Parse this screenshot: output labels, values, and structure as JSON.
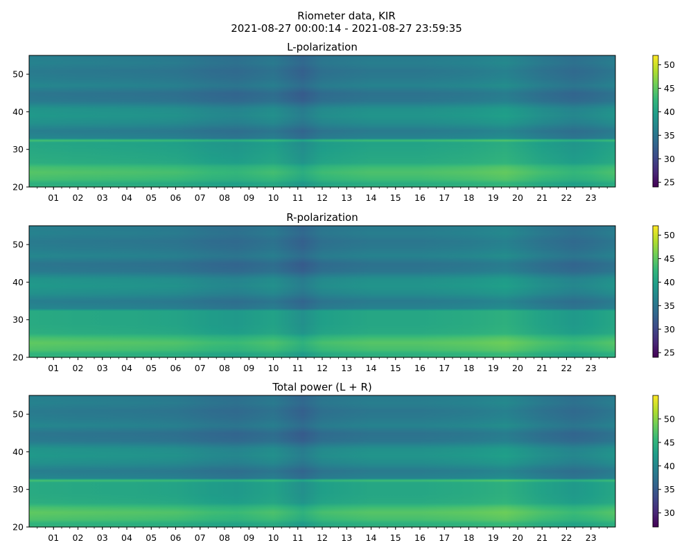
{
  "figure": {
    "title_line1": "Riometer data, KIR",
    "title_line2": "2021-08-27 00:00:14 - 2021-08-27 23:59:35"
  },
  "colormap": {
    "name": "viridis",
    "stops": [
      "#440154",
      "#482878",
      "#3e4989",
      "#31688e",
      "#26828e",
      "#1f9e89",
      "#35b779",
      "#6ece58",
      "#b5de2b",
      "#fde725"
    ]
  },
  "chart_data": [
    {
      "type": "heatmap",
      "title": "L-polarization",
      "x_tick_labels": [
        "01",
        "02",
        "03",
        "04",
        "05",
        "06",
        "07",
        "08",
        "09",
        "10",
        "11",
        "12",
        "13",
        "14",
        "15",
        "16",
        "17",
        "18",
        "19",
        "20",
        "21",
        "22",
        "23"
      ],
      "xlim_hours": [
        0,
        24
      ],
      "ylim": [
        20,
        55
      ],
      "y_ticks": [
        20,
        30,
        40,
        50
      ],
      "colorbar": {
        "vmin": 24,
        "vmax": 52,
        "ticks": [
          25,
          30,
          35,
          40,
          45,
          50
        ]
      },
      "freq_profile": [
        {
          "y": 20,
          "v": 42
        },
        {
          "y": 21,
          "v": 41
        },
        {
          "y": 22,
          "v": 43
        },
        {
          "y": 24,
          "v": 44
        },
        {
          "y": 25.5,
          "v": 43
        },
        {
          "y": 26.5,
          "v": 41
        },
        {
          "y": 29,
          "v": 40.5
        },
        {
          "y": 32,
          "v": 40
        },
        {
          "y": 32.5,
          "v": 44
        },
        {
          "y": 33,
          "v": 36.5
        },
        {
          "y": 35,
          "v": 35.5
        },
        {
          "y": 37,
          "v": 37.5
        },
        {
          "y": 39,
          "v": 38.5
        },
        {
          "y": 41,
          "v": 38
        },
        {
          "y": 43,
          "v": 35
        },
        {
          "y": 45,
          "v": 34.5
        },
        {
          "y": 47,
          "v": 36.5
        },
        {
          "y": 49,
          "v": 35.5
        },
        {
          "y": 51,
          "v": 35
        },
        {
          "y": 53,
          "v": 36
        },
        {
          "y": 55,
          "v": 35.5
        }
      ],
      "time_modulation": [
        {
          "h": 0,
          "d": 0.5
        },
        {
          "h": 2,
          "d": 0.2
        },
        {
          "h": 4,
          "d": 0
        },
        {
          "h": 6,
          "d": -0.3
        },
        {
          "h": 7.5,
          "d": -1.2
        },
        {
          "h": 8.5,
          "d": -1.5
        },
        {
          "h": 10,
          "d": -0.5
        },
        {
          "h": 11.2,
          "d": -2.5
        },
        {
          "h": 12,
          "d": -0.8
        },
        {
          "h": 14,
          "d": 0
        },
        {
          "h": 16,
          "d": 0
        },
        {
          "h": 18,
          "d": 0.5
        },
        {
          "h": 19.5,
          "d": 1.2
        },
        {
          "h": 21,
          "d": -0.5
        },
        {
          "h": 22.3,
          "d": -1.5
        },
        {
          "h": 23,
          "d": -1
        },
        {
          "h": 24,
          "d": 0
        }
      ]
    },
    {
      "type": "heatmap",
      "title": "R-polarization",
      "x_tick_labels": [
        "01",
        "02",
        "03",
        "04",
        "05",
        "06",
        "07",
        "08",
        "09",
        "10",
        "11",
        "12",
        "13",
        "14",
        "15",
        "16",
        "17",
        "18",
        "19",
        "20",
        "21",
        "22",
        "23"
      ],
      "xlim_hours": [
        0,
        24
      ],
      "ylim": [
        20,
        55
      ],
      "y_ticks": [
        20,
        30,
        40,
        50
      ],
      "colorbar": {
        "vmin": 24,
        "vmax": 52,
        "ticks": [
          25,
          30,
          35,
          40,
          45,
          50
        ]
      },
      "freq_profile": [
        {
          "y": 20,
          "v": 42
        },
        {
          "y": 21,
          "v": 41.5
        },
        {
          "y": 22,
          "v": 43.5
        },
        {
          "y": 24,
          "v": 44.5
        },
        {
          "y": 25.5,
          "v": 43
        },
        {
          "y": 26.5,
          "v": 41
        },
        {
          "y": 29,
          "v": 40.5
        },
        {
          "y": 32.5,
          "v": 40.5
        },
        {
          "y": 33,
          "v": 36.5
        },
        {
          "y": 35,
          "v": 35.5
        },
        {
          "y": 37,
          "v": 37.5
        },
        {
          "y": 39,
          "v": 38.5
        },
        {
          "y": 41,
          "v": 38
        },
        {
          "y": 43,
          "v": 35
        },
        {
          "y": 45,
          "v": 34.5
        },
        {
          "y": 47,
          "v": 36.5
        },
        {
          "y": 49,
          "v": 35.5
        },
        {
          "y": 51,
          "v": 35
        },
        {
          "y": 53,
          "v": 36
        },
        {
          "y": 55,
          "v": 35.5
        }
      ],
      "time_modulation": [
        {
          "h": 0,
          "d": 0.5
        },
        {
          "h": 2,
          "d": 0.2
        },
        {
          "h": 4,
          "d": 0
        },
        {
          "h": 6,
          "d": -0.3
        },
        {
          "h": 7.5,
          "d": -1.2
        },
        {
          "h": 8.5,
          "d": -1.5
        },
        {
          "h": 10,
          "d": -0.5
        },
        {
          "h": 11.2,
          "d": -2.5
        },
        {
          "h": 12,
          "d": -0.8
        },
        {
          "h": 14,
          "d": 0
        },
        {
          "h": 16,
          "d": 0
        },
        {
          "h": 18,
          "d": 0.5
        },
        {
          "h": 19.5,
          "d": 1.2
        },
        {
          "h": 21,
          "d": -0.5
        },
        {
          "h": 22.3,
          "d": -1.5
        },
        {
          "h": 23,
          "d": -1
        },
        {
          "h": 24,
          "d": 0
        }
      ]
    },
    {
      "type": "heatmap",
      "title": "Total power (L + R)",
      "x_tick_labels": [
        "01",
        "02",
        "03",
        "04",
        "05",
        "06",
        "07",
        "08",
        "09",
        "10",
        "11",
        "12",
        "13",
        "14",
        "15",
        "16",
        "17",
        "18",
        "19",
        "20",
        "21",
        "22",
        "23"
      ],
      "xlim_hours": [
        0,
        24
      ],
      "ylim": [
        20,
        55
      ],
      "y_ticks": [
        20,
        30,
        40,
        50
      ],
      "colorbar": {
        "vmin": 27,
        "vmax": 55,
        "ticks": [
          30,
          35,
          40,
          45,
          50
        ]
      },
      "freq_profile": [
        {
          "y": 20,
          "v": 45
        },
        {
          "y": 21,
          "v": 44.5
        },
        {
          "y": 22,
          "v": 46.5
        },
        {
          "y": 24,
          "v": 47.5
        },
        {
          "y": 25.5,
          "v": 46
        },
        {
          "y": 26.5,
          "v": 44
        },
        {
          "y": 29,
          "v": 43.5
        },
        {
          "y": 32,
          "v": 43.5
        },
        {
          "y": 32.5,
          "v": 47
        },
        {
          "y": 33,
          "v": 39.5
        },
        {
          "y": 35,
          "v": 38.5
        },
        {
          "y": 37,
          "v": 40.5
        },
        {
          "y": 39,
          "v": 41.5
        },
        {
          "y": 41,
          "v": 41
        },
        {
          "y": 43,
          "v": 38
        },
        {
          "y": 45,
          "v": 37.5
        },
        {
          "y": 47,
          "v": 39.5
        },
        {
          "y": 49,
          "v": 38.5
        },
        {
          "y": 51,
          "v": 38
        },
        {
          "y": 53,
          "v": 39
        },
        {
          "y": 55,
          "v": 38.5
        }
      ],
      "time_modulation": [
        {
          "h": 0,
          "d": 0.5
        },
        {
          "h": 2,
          "d": 0.2
        },
        {
          "h": 4,
          "d": 0
        },
        {
          "h": 6,
          "d": -0.3
        },
        {
          "h": 7.5,
          "d": -1.2
        },
        {
          "h": 8.5,
          "d": -1.5
        },
        {
          "h": 10,
          "d": -0.5
        },
        {
          "h": 11.2,
          "d": -2.5
        },
        {
          "h": 12,
          "d": -0.8
        },
        {
          "h": 14,
          "d": 0
        },
        {
          "h": 16,
          "d": 0
        },
        {
          "h": 18,
          "d": 0.5
        },
        {
          "h": 19.5,
          "d": 1.2
        },
        {
          "h": 21,
          "d": -0.5
        },
        {
          "h": 22.3,
          "d": -1.5
        },
        {
          "h": 23,
          "d": -1
        },
        {
          "h": 24,
          "d": 0
        }
      ]
    }
  ]
}
